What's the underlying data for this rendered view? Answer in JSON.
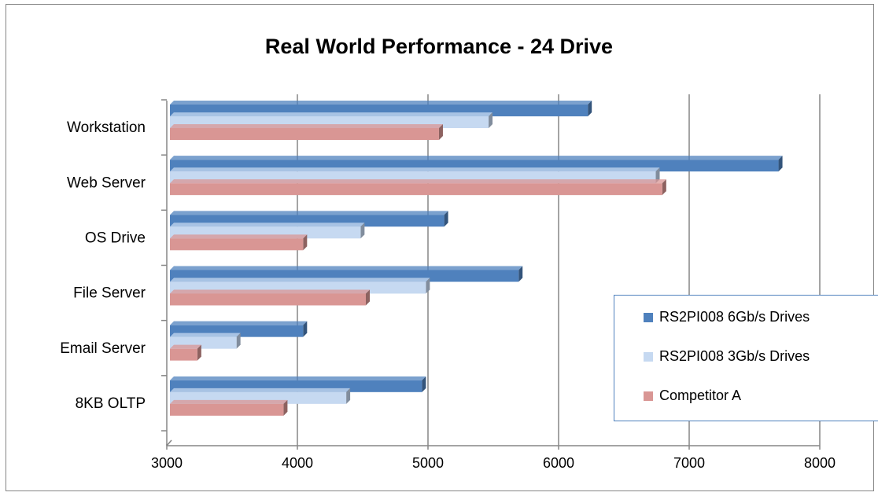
{
  "chart_data": {
    "type": "bar",
    "orientation": "horizontal",
    "title": "Real World Performance - 24 Drive",
    "categories": [
      "Workstation",
      "Web Server",
      "OS Drive",
      "File Server",
      "Email Server",
      "8KB OLTP"
    ],
    "series": [
      {
        "name": "RS2PI008 6Gb/s Drives",
        "color": "#4f81bd",
        "values": [
          6200,
          7660,
          5100,
          5670,
          4020,
          4930
        ]
      },
      {
        "name": "RS2PI008 3Gb/s Drives",
        "color": "#c6d9f1",
        "values": [
          5440,
          6720,
          4460,
          4960,
          3510,
          4350
        ]
      },
      {
        "name": "Competitor A",
        "color": "#d99694",
        "values": [
          5060,
          6770,
          4020,
          4500,
          3210,
          3870
        ]
      }
    ],
    "x_ticks": [
      "3000",
      "4000",
      "5000",
      "6000",
      "7000",
      "8000"
    ],
    "xlim": [
      3000,
      8000
    ],
    "grid": true,
    "legend_position": "bottom-right"
  }
}
